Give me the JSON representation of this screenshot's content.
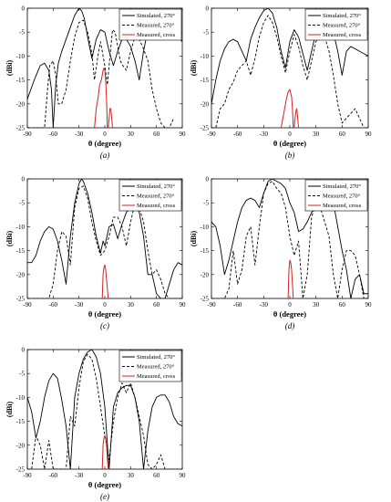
{
  "chart_data": [
    {
      "type": "line",
      "caption": "(a)",
      "xlabel": "θ (degree)",
      "ylabel": "(dBi)",
      "xlim": [
        -90,
        90
      ],
      "ylim": [
        -25,
        0
      ],
      "xticks": [
        "-90",
        "-60",
        "-30",
        "0",
        "30",
        "60",
        "90"
      ],
      "yticks": [
        "0",
        "-5",
        "-10",
        "-15",
        "-20",
        "-25"
      ],
      "legend_position": "top-right",
      "series": [
        {
          "name": "Simulated, 270°",
          "style": "solid",
          "color": "#000000",
          "x": [
            -90,
            -82,
            -75,
            -70,
            -65,
            -62,
            -60,
            -57,
            -54,
            -50,
            -45,
            -40,
            -35,
            -30,
            -27,
            -24,
            -20,
            -15,
            -10,
            -5,
            0,
            5,
            10,
            15,
            20,
            25,
            30,
            35,
            40,
            45,
            50,
            55,
            60,
            65,
            70,
            75,
            80,
            85,
            90
          ],
          "y": [
            -19,
            -15,
            -12,
            -11.5,
            -13,
            -17,
            -25,
            -16,
            -11.5,
            -9,
            -6.5,
            -4,
            -1.5,
            0,
            -0.5,
            -2,
            -6,
            -10.5,
            -6.5,
            -4.5,
            -5,
            -9,
            -12,
            -9,
            -6.5,
            -6.5,
            -8,
            -11,
            -15,
            -9,
            -4.5,
            -2.5,
            -2,
            -2,
            -2.5,
            -3.5,
            -4.5,
            -6,
            -7
          ]
        },
        {
          "name": "Measured, 270°",
          "style": "dashed",
          "color": "#000000",
          "x": [
            -90,
            -85,
            -80,
            -75,
            -70,
            -67,
            -64,
            -60,
            -57,
            -54,
            -50,
            -45,
            -40,
            -35,
            -30,
            -25,
            -20,
            -15,
            -12,
            -8,
            -5,
            0,
            3,
            6,
            9,
            12,
            15,
            18,
            21,
            25,
            30,
            35,
            40,
            45,
            50,
            55,
            60,
            65,
            70,
            75,
            80
          ],
          "y": [
            -25,
            -25,
            -25,
            -25,
            -25,
            -18,
            -12,
            -11,
            -14,
            -20,
            -20,
            -17,
            -11,
            -6,
            -3,
            -2.5,
            -5,
            -9.5,
            -15,
            -10,
            -7,
            -12,
            -16,
            -10,
            -4.5,
            -5,
            -8,
            -11,
            -12,
            -13,
            -9,
            -6,
            -6.5,
            -8.5,
            -11,
            -17,
            -21,
            -24,
            -25,
            -25,
            -23
          ]
        },
        {
          "name": "Measured, cross",
          "style": "solid",
          "color": "#d42020",
          "x": [
            -12,
            -10,
            -8,
            -6,
            -4,
            -3,
            -2,
            -1,
            0,
            1,
            2,
            3,
            4,
            5,
            6,
            7,
            8,
            9,
            10
          ],
          "y": [
            -25,
            -21,
            -19,
            -16,
            -15,
            -14,
            -13,
            -12.5,
            -13,
            -15,
            -19,
            -25,
            -25,
            -23,
            -21,
            -21,
            -23,
            -25,
            -25
          ]
        }
      ]
    },
    {
      "type": "line",
      "caption": "(b)",
      "xlabel": "θ (degree)",
      "ylabel": "(dBi)",
      "xlim": [
        -90,
        90
      ],
      "ylim": [
        -25,
        0
      ],
      "xticks": [
        "-90",
        "-60",
        "-30",
        "0",
        "30",
        "60",
        "90"
      ],
      "yticks": [
        "0",
        "-5",
        "-10",
        "-15",
        "-20",
        "-25"
      ],
      "legend_position": "top-right",
      "series": [
        {
          "name": "Simulated, 270°",
          "style": "solid",
          "color": "#000000",
          "x": [
            -90,
            -85,
            -80,
            -75,
            -70,
            -65,
            -60,
            -55,
            -50,
            -45,
            -40,
            -35,
            -30,
            -25,
            -20,
            -15,
            -10,
            -5,
            0,
            5,
            10,
            15,
            20,
            25,
            30,
            35,
            40,
            45,
            50,
            55,
            60,
            65,
            70,
            75,
            80,
            85,
            90
          ],
          "y": [
            -20,
            -15,
            -11,
            -8.5,
            -7,
            -6.5,
            -7,
            -9,
            -11,
            -6.5,
            -4,
            -2,
            -0.5,
            0,
            -1,
            -4,
            -9,
            -12.5,
            -7,
            -4.5,
            -6,
            -9.5,
            -13,
            -9,
            -5,
            -3,
            -2,
            -3,
            -5,
            -9,
            -14,
            -9,
            -8,
            -8.5,
            -9,
            -9.5,
            -10
          ]
        },
        {
          "name": "Measured, 270°",
          "style": "dashed",
          "color": "#000000",
          "x": [
            -90,
            -85,
            -80,
            -75,
            -70,
            -65,
            -60,
            -55,
            -50,
            -45,
            -40,
            -35,
            -30,
            -25,
            -20,
            -15,
            -10,
            -5,
            0,
            5,
            10,
            15,
            20,
            25,
            30,
            35,
            40,
            45,
            50,
            55,
            60,
            65,
            70,
            75,
            80,
            85,
            90
          ],
          "y": [
            -25,
            -25,
            -21,
            -20,
            -17,
            -15.5,
            -13,
            -12,
            -11,
            -14,
            -10.5,
            -6,
            -3,
            -1.5,
            -3,
            -6,
            -10,
            -13.5,
            -9,
            -5.5,
            -8,
            -12,
            -15,
            -11,
            -7,
            -5,
            -6,
            -9,
            -14,
            -20,
            -24,
            -23,
            -22,
            -21,
            -23,
            -25,
            -25
          ]
        },
        {
          "name": "Measured, cross",
          "style": "solid",
          "color": "#d42020",
          "x": [
            -10,
            -8,
            -6,
            -4,
            -2,
            0,
            2,
            3,
            4,
            5,
            6,
            7,
            8,
            9,
            10,
            11
          ],
          "y": [
            -25,
            -23,
            -21,
            -19,
            -17.5,
            -17,
            -18.5,
            -21,
            -25,
            -25,
            -23,
            -21.5,
            -21,
            -23,
            -25,
            -25
          ]
        }
      ]
    },
    {
      "type": "line",
      "caption": "(c)",
      "xlabel": "θ (degree)",
      "ylabel": "(dBi)",
      "xlim": [
        -90,
        90
      ],
      "ylim": [
        -25,
        0
      ],
      "xticks": [
        "-90",
        "-60",
        "-30",
        "0",
        "30",
        "60",
        "90"
      ],
      "yticks": [
        "0",
        "-5",
        "-10",
        "-15",
        "-20",
        "-25"
      ],
      "legend_position": "top-right",
      "series": [
        {
          "name": "Simulated, 270°",
          "style": "solid",
          "color": "#000000",
          "x": [
            -90,
            -85,
            -80,
            -75,
            -70,
            -65,
            -60,
            -55,
            -50,
            -45,
            -40,
            -35,
            -30,
            -27,
            -25,
            -20,
            -15,
            -10,
            -5,
            -2,
            0,
            5,
            10,
            15,
            20,
            25,
            30,
            35,
            40,
            45,
            50,
            55,
            60,
            65,
            70,
            75,
            80,
            85,
            90
          ],
          "y": [
            -17.5,
            -17.5,
            -16,
            -13,
            -11,
            -10,
            -10.5,
            -13,
            -17,
            -22,
            -12,
            -5,
            -1,
            0,
            -0.5,
            -3,
            -7,
            -12,
            -15.5,
            -13,
            -14,
            -10,
            -9.5,
            -12.5,
            -9.5,
            -7,
            -6,
            -5.5,
            -7,
            -12,
            -20,
            -20,
            -24,
            -25,
            -25,
            -22,
            -19,
            -17.5,
            -18
          ]
        },
        {
          "name": "Measured, 270°",
          "style": "dashed",
          "color": "#000000",
          "x": [
            -90,
            -85,
            -80,
            -75,
            -70,
            -65,
            -60,
            -55,
            -50,
            -45,
            -40,
            -35,
            -30,
            -25,
            -20,
            -15,
            -10,
            -5,
            0,
            5,
            10,
            15,
            20,
            25,
            30,
            35,
            40,
            45,
            50,
            55,
            60,
            65,
            70,
            75,
            80,
            85,
            90
          ],
          "y": [
            -25,
            -25,
            -25,
            -25,
            -25,
            -25,
            -22,
            -15,
            -11,
            -12,
            -18,
            -6,
            -2,
            -1.5,
            -4,
            -9,
            -13,
            -16,
            -15,
            -12,
            -8,
            -8,
            -10,
            -14,
            -9,
            -5,
            -6,
            -9,
            -15,
            -20,
            -19,
            -21,
            -24,
            -25,
            -25,
            -25,
            -25
          ]
        },
        {
          "name": "Measured, cross",
          "style": "solid",
          "color": "#d42020",
          "x": [
            -3,
            -2,
            -1,
            0,
            1,
            2,
            3,
            4,
            5
          ],
          "y": [
            -25,
            -20,
            -18.5,
            -18,
            -19,
            -21,
            -23,
            -25,
            -25
          ]
        }
      ]
    },
    {
      "type": "line",
      "caption": "(d)",
      "xlabel": "θ (degree)",
      "ylabel": "(dBi)",
      "xlim": [
        -90,
        90
      ],
      "ylim": [
        -25,
        0
      ],
      "xticks": [
        "-90",
        "-60",
        "-30",
        "0",
        "30",
        "60",
        "90"
      ],
      "yticks": [
        "0",
        "-5",
        "-10",
        "-15",
        "-20",
        "-25"
      ],
      "legend_position": "top-right",
      "series": [
        {
          "name": "Simulated, 270°",
          "style": "solid",
          "color": "#000000",
          "x": [
            -90,
            -85,
            -80,
            -75,
            -70,
            -65,
            -60,
            -55,
            -50,
            -45,
            -40,
            -35,
            -30,
            -25,
            -20,
            -15,
            -10,
            -5,
            0,
            5,
            10,
            15,
            20,
            25,
            30,
            35,
            40,
            45,
            50,
            55,
            60,
            65,
            70,
            75,
            80,
            85,
            90
          ],
          "y": [
            -9,
            -10,
            -14,
            -20,
            -17,
            -13,
            -9,
            -6,
            -4.5,
            -4,
            -4.5,
            -6,
            -3,
            -0.5,
            0,
            -0.5,
            -1,
            -2,
            -5,
            -7,
            -11,
            -10.5,
            -9,
            -7,
            -6,
            -5,
            -4.5,
            -4.5,
            -5,
            -10,
            -15,
            -19,
            -25,
            -21,
            -20,
            -24,
            -24
          ]
        },
        {
          "name": "Measured, 270°",
          "style": "dashed",
          "color": "#000000",
          "x": [
            -90,
            -85,
            -80,
            -75,
            -70,
            -65,
            -60,
            -55,
            -50,
            -45,
            -40,
            -35,
            -30,
            -25,
            -20,
            -15,
            -10,
            -5,
            0,
            5,
            10,
            15,
            20,
            25,
            30,
            35,
            40,
            45,
            50,
            55,
            60,
            65,
            70,
            75,
            80,
            85,
            90
          ],
          "y": [
            -25,
            -25,
            -25,
            -25,
            -23,
            -15,
            -22,
            -19,
            -12,
            -10,
            -18,
            -10,
            -3,
            -1,
            -0.5,
            -2,
            -3,
            -6,
            -12,
            -16,
            -13,
            -25,
            -20,
            -8,
            -5,
            -6,
            -9,
            -12,
            -20,
            -25,
            -19,
            -15,
            -15,
            -16,
            -20,
            -25,
            -25
          ]
        },
        {
          "name": "Measured, cross",
          "style": "solid",
          "color": "#d42020",
          "x": [
            -2,
            -1,
            0,
            1,
            2,
            3,
            4,
            5,
            6
          ],
          "y": [
            -25,
            -19,
            -17,
            -17.5,
            -19,
            -22,
            -25,
            -25,
            -25
          ]
        }
      ]
    },
    {
      "type": "line",
      "caption": "(e)",
      "xlabel": "θ (degree)",
      "ylabel": "(dBi)",
      "xlim": [
        -90,
        90
      ],
      "ylim": [
        -25,
        0
      ],
      "xticks": [
        "-90",
        "-60",
        "-30",
        "0",
        "30",
        "60",
        "90"
      ],
      "yticks": [
        "0",
        "-5",
        "-10",
        "-15",
        "-20",
        "-25"
      ],
      "legend_position": "top-right",
      "series": [
        {
          "name": "Simulated, 270°",
          "style": "solid",
          "color": "#000000",
          "x": [
            -90,
            -85,
            -80,
            -75,
            -70,
            -65,
            -60,
            -55,
            -50,
            -45,
            -40,
            -35,
            -30,
            -25,
            -20,
            -15,
            -10,
            -5,
            0,
            5,
            10,
            15,
            20,
            25,
            30,
            35,
            40,
            45,
            50,
            55,
            60,
            65,
            70,
            75,
            80,
            85,
            90
          ],
          "y": [
            -10,
            -13,
            -18.5,
            -15,
            -10,
            -6.5,
            -5,
            -6,
            -10.5,
            -16,
            -25,
            -10,
            -5,
            -2,
            -0.5,
            0,
            -1.5,
            -5,
            -12,
            -25,
            -12,
            -9,
            -8,
            -7.5,
            -7.5,
            -10,
            -15,
            -25,
            -17,
            -12,
            -10,
            -9.5,
            -9.5,
            -11,
            -14,
            -15.5,
            -16
          ]
        },
        {
          "name": "Measured, 270°",
          "style": "dashed",
          "color": "#000000",
          "x": [
            -90,
            -85,
            -80,
            -75,
            -70,
            -65,
            -60,
            -55,
            -50,
            -45,
            -40,
            -35,
            -30,
            -25,
            -20,
            -15,
            -10,
            -5,
            0,
            5,
            10,
            15,
            20,
            25,
            30,
            35,
            40,
            45,
            50,
            55,
            60,
            65,
            70,
            75,
            80,
            85,
            90
          ],
          "y": [
            -25,
            -25,
            -18,
            -20,
            -25,
            -19,
            -25,
            -25,
            -25,
            -25,
            -14,
            -16,
            -8,
            -2.5,
            -1,
            -2,
            -6,
            -12,
            -18,
            -23,
            -15,
            -10,
            -7,
            -9,
            -7,
            -10,
            -14,
            -18,
            -24,
            -25,
            -24,
            -22,
            -25,
            -25,
            -25,
            -25,
            -25
          ]
        },
        {
          "name": "Measured, cross",
          "style": "solid",
          "color": "#d42020",
          "x": [
            -3,
            -2,
            -1,
            0,
            1,
            2,
            3,
            4,
            5
          ],
          "y": [
            -25,
            -20,
            -18.5,
            -18,
            -18.5,
            -20,
            -23,
            -25,
            -25
          ]
        }
      ]
    }
  ]
}
